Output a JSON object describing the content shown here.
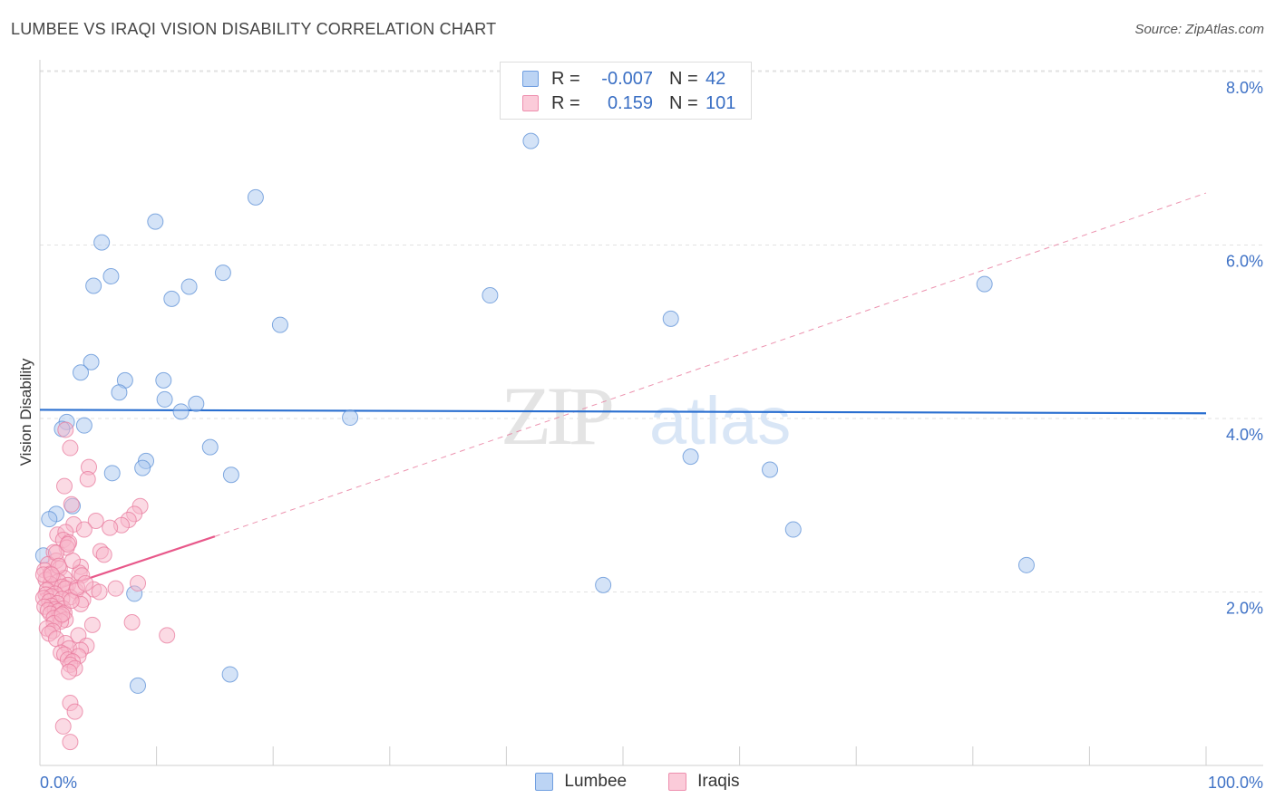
{
  "title": "LUMBEE VS IRAQI VISION DISABILITY CORRELATION CHART",
  "source": "Source: ZipAtlas.com",
  "watermark": {
    "zip": "ZIP",
    "atlas": "atlas"
  },
  "legend": {
    "rows": [
      {
        "name": "Lumbee",
        "r_label": "R =",
        "r_value": "-0.007",
        "n_label": "N =",
        "n_value": "42",
        "color": "#aac8f0"
      },
      {
        "name": "Iraqis",
        "r_label": "R =",
        "r_value": "0.159",
        "n_label": "N =",
        "n_value": "101",
        "color": "#f7b6ca"
      }
    ]
  },
  "chart_data": {
    "type": "scatter",
    "ylabel": "Vision Disability",
    "xlim": [
      0,
      100
    ],
    "ylim": [
      0,
      8.0
    ],
    "y_ticks": [
      {
        "value": 2.0,
        "label": "2.0%"
      },
      {
        "value": 4.0,
        "label": "4.0%"
      },
      {
        "value": 6.0,
        "label": "6.0%"
      },
      {
        "value": 8.0,
        "label": "8.0%"
      }
    ],
    "x_tick_labels": {
      "left": "0.0%",
      "right": "100.0%"
    },
    "grid": true,
    "legend_position": "top-center",
    "series": [
      {
        "name": "Lumbee",
        "color": "#aac8f0",
        "stroke": "#5b8fd6",
        "trend": {
          "x0": 0,
          "y0": 4.1,
          "x1": 100,
          "y1": 4.06,
          "color": "#2a6fd0"
        },
        "points": [
          [
            42.1,
            7.2
          ],
          [
            18.5,
            6.55
          ],
          [
            9.9,
            6.27
          ],
          [
            5.3,
            6.03
          ],
          [
            6.1,
            5.64
          ],
          [
            15.7,
            5.68
          ],
          [
            4.6,
            5.53
          ],
          [
            12.8,
            5.52
          ],
          [
            11.3,
            5.38
          ],
          [
            81.0,
            5.55
          ],
          [
            38.6,
            5.42
          ],
          [
            20.6,
            5.08
          ],
          [
            54.1,
            5.15
          ],
          [
            4.4,
            4.65
          ],
          [
            3.5,
            4.53
          ],
          [
            7.3,
            4.44
          ],
          [
            10.6,
            4.44
          ],
          [
            6.8,
            4.3
          ],
          [
            10.7,
            4.22
          ],
          [
            13.4,
            4.17
          ],
          [
            12.1,
            4.08
          ],
          [
            26.6,
            4.01
          ],
          [
            2.3,
            3.96
          ],
          [
            3.8,
            3.92
          ],
          [
            1.9,
            3.88
          ],
          [
            14.6,
            3.67
          ],
          [
            9.1,
            3.51
          ],
          [
            8.8,
            3.43
          ],
          [
            6.2,
            3.37
          ],
          [
            16.4,
            3.35
          ],
          [
            55.8,
            3.56
          ],
          [
            62.6,
            3.41
          ],
          [
            2.8,
            2.99
          ],
          [
            1.4,
            2.9
          ],
          [
            0.8,
            2.84
          ],
          [
            64.6,
            2.72
          ],
          [
            84.6,
            2.31
          ],
          [
            0.3,
            2.42
          ],
          [
            48.3,
            2.08
          ],
          [
            8.1,
            1.98
          ],
          [
            16.3,
            1.05
          ],
          [
            8.4,
            0.92
          ]
        ]
      },
      {
        "name": "Iraqis",
        "color": "#f7b6ca",
        "stroke": "#e8799c",
        "trend": {
          "x0": 0,
          "y0": 1.97,
          "x1": 15,
          "y1": 2.64,
          "color": "#e8588a"
        },
        "trend_extension": {
          "x0": 15,
          "y0": 2.64,
          "x1": 100,
          "y1": 6.6,
          "color": "#e8799c"
        },
        "points": [
          [
            2.2,
            3.87
          ],
          [
            2.6,
            3.66
          ],
          [
            4.2,
            3.44
          ],
          [
            4.1,
            3.3
          ],
          [
            2.1,
            3.22
          ],
          [
            8.6,
            2.99
          ],
          [
            2.7,
            3.01
          ],
          [
            8.1,
            2.9
          ],
          [
            7.6,
            2.83
          ],
          [
            4.8,
            2.82
          ],
          [
            2.9,
            2.78
          ],
          [
            7.0,
            2.77
          ],
          [
            6.0,
            2.74
          ],
          [
            3.8,
            2.72
          ],
          [
            1.5,
            2.66
          ],
          [
            2.2,
            2.69
          ],
          [
            2.0,
            2.6
          ],
          [
            2.5,
            2.57
          ],
          [
            2.3,
            2.51
          ],
          [
            1.2,
            2.46
          ],
          [
            5.2,
            2.47
          ],
          [
            5.5,
            2.43
          ],
          [
            1.4,
            2.36
          ],
          [
            0.7,
            2.32
          ],
          [
            3.5,
            2.29
          ],
          [
            1.7,
            2.27
          ],
          [
            0.4,
            2.25
          ],
          [
            3.4,
            2.22
          ],
          [
            0.9,
            2.21
          ],
          [
            3.6,
            2.19
          ],
          [
            1.1,
            2.17
          ],
          [
            2.1,
            2.16
          ],
          [
            0.5,
            2.14
          ],
          [
            1.6,
            2.12
          ],
          [
            0.9,
            2.09
          ],
          [
            2.4,
            2.08
          ],
          [
            1.9,
            2.06
          ],
          [
            2.2,
            2.04
          ],
          [
            4.6,
            2.03
          ],
          [
            8.4,
            2.1
          ],
          [
            6.5,
            2.04
          ],
          [
            0.6,
            2.02
          ],
          [
            3.1,
            2.01
          ],
          [
            5.1,
            2.0
          ],
          [
            1.3,
            1.98
          ],
          [
            0.5,
            1.97
          ],
          [
            1.0,
            1.95
          ],
          [
            2.6,
            1.94
          ],
          [
            0.3,
            1.93
          ],
          [
            1.9,
            1.92
          ],
          [
            3.7,
            1.91
          ],
          [
            0.8,
            1.89
          ],
          [
            1.5,
            1.87
          ],
          [
            3.5,
            1.86
          ],
          [
            1.0,
            1.84
          ],
          [
            0.4,
            1.83
          ],
          [
            2.0,
            1.81
          ],
          [
            1.3,
            1.8
          ],
          [
            0.7,
            1.79
          ],
          [
            1.6,
            1.78
          ],
          [
            2.1,
            1.76
          ],
          [
            0.9,
            1.75
          ],
          [
            1.7,
            1.72
          ],
          [
            1.2,
            1.7
          ],
          [
            2.2,
            1.68
          ],
          [
            1.8,
            1.66
          ],
          [
            1.2,
            1.64
          ],
          [
            4.5,
            1.62
          ],
          [
            7.9,
            1.65
          ],
          [
            0.6,
            1.58
          ],
          [
            1.1,
            1.55
          ],
          [
            0.8,
            1.52
          ],
          [
            3.3,
            1.5
          ],
          [
            10.9,
            1.5
          ],
          [
            1.4,
            1.46
          ],
          [
            2.2,
            1.41
          ],
          [
            4.0,
            1.38
          ],
          [
            2.5,
            1.35
          ],
          [
            3.5,
            1.33
          ],
          [
            1.8,
            1.3
          ],
          [
            2.1,
            1.28
          ],
          [
            3.3,
            1.26
          ],
          [
            2.4,
            1.22
          ],
          [
            2.8,
            1.2
          ],
          [
            2.6,
            1.16
          ],
          [
            3.0,
            1.12
          ],
          [
            2.5,
            1.08
          ],
          [
            2.6,
            0.72
          ],
          [
            3.0,
            0.62
          ],
          [
            2.0,
            0.45
          ],
          [
            2.6,
            0.27
          ],
          [
            1.9,
            1.74
          ],
          [
            2.7,
            1.9
          ],
          [
            2.8,
            2.36
          ],
          [
            3.2,
            2.05
          ],
          [
            1.4,
            2.45
          ],
          [
            2.4,
            2.55
          ],
          [
            1.6,
            2.3
          ],
          [
            0.3,
            2.2
          ],
          [
            1.0,
            2.2
          ],
          [
            3.9,
            2.1
          ]
        ]
      }
    ]
  }
}
